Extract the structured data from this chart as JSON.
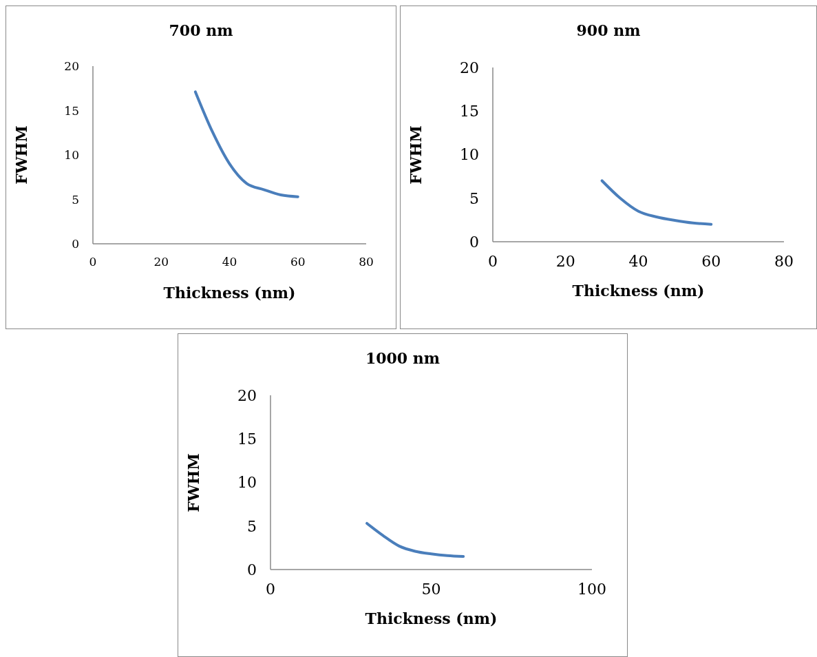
{
  "chart_data": [
    {
      "type": "line",
      "title": "700 nm",
      "xlabel": "Thickness (nm)",
      "ylabel": "FWHM",
      "x": [
        30,
        35,
        40,
        45,
        50,
        55,
        60
      ],
      "series": [
        {
          "color": "#4a7ebb",
          "values": [
            17.1,
            12.6,
            9.0,
            6.8,
            6.1,
            5.5,
            5.3
          ]
        }
      ],
      "xlim": [
        0,
        80
      ],
      "xticks": [
        0,
        20,
        40,
        60,
        80
      ],
      "ylim": [
        0,
        20
      ],
      "yticks": [
        0,
        5,
        10,
        15,
        20
      ],
      "grid": false,
      "legend": false,
      "marker": "none",
      "line_style": "solid"
    },
    {
      "type": "line",
      "title": "900 nm",
      "xlabel": "Thickness (nm)",
      "ylabel": "FWHM",
      "x": [
        30,
        35,
        40,
        45,
        50,
        55,
        60
      ],
      "series": [
        {
          "color": "#4a7ebb",
          "values": [
            7.0,
            5.0,
            3.5,
            2.85,
            2.45,
            2.15,
            2.0
          ]
        }
      ],
      "xlim": [
        0,
        80
      ],
      "xticks": [
        0,
        20,
        40,
        60,
        80
      ],
      "ylim": [
        0,
        20
      ],
      "yticks": [
        0,
        5,
        10,
        15,
        20
      ],
      "grid": false,
      "legend": false,
      "marker": "none",
      "line_style": "solid"
    },
    {
      "type": "line",
      "title": "1000 nm",
      "xlabel": "Thickness (nm)",
      "ylabel": "FWHM",
      "x": [
        30,
        35,
        40,
        45,
        50,
        55,
        60
      ],
      "series": [
        {
          "color": "#4a7ebb",
          "values": [
            5.3,
            3.9,
            2.7,
            2.1,
            1.8,
            1.6,
            1.5
          ]
        }
      ],
      "xlim": [
        0,
        100
      ],
      "xticks": [
        0,
        50,
        100
      ],
      "ylim": [
        0,
        20
      ],
      "yticks": [
        0,
        5,
        10,
        15,
        20
      ],
      "grid": false,
      "legend": false,
      "marker": "none",
      "line_style": "solid"
    }
  ]
}
